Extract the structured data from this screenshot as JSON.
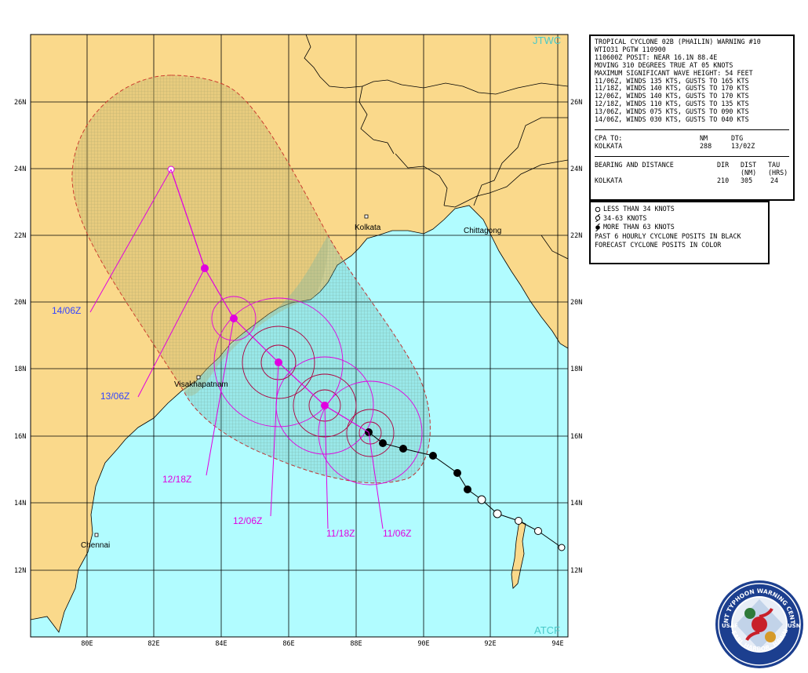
{
  "map": {
    "corner_labels": {
      "top_right": "JTWC",
      "bottom_right": "ATCF"
    },
    "lat_labels": [
      "26N",
      "24N",
      "22N",
      "20N",
      "18N",
      "16N",
      "14N",
      "12N"
    ],
    "lon_labels": [
      "80E",
      "82E",
      "84E",
      "86E",
      "88E",
      "90E",
      "92E",
      "94E"
    ],
    "cities": {
      "kolkata": "Kolkata",
      "chittagong": "Chittagong",
      "visakhapatnam": "Visakhapatnam",
      "chennai": "Chennai"
    },
    "forecast_labels": {
      "t1": "11/06Z",
      "t2": "11/18Z",
      "t3": "12/06Z",
      "t4": "12/18Z",
      "t5": "13/06Z",
      "t6": "14/06Z"
    },
    "colors": {
      "land": "#fad98b",
      "water": "#b1fcff",
      "forecast": "#e000e0",
      "danger_land": "#c8b66a",
      "danger_water": "#8fd2d0",
      "label_land": "#3344ff"
    }
  },
  "info": {
    "title": "TROPICAL CYCLONE 02B (PHAILIN) WARNING #10",
    "line2": "WTIO31 PGTW 110900",
    "line3": "110600Z POSIT: NEAR 16.1N 88.4E",
    "line4": "MOVING 310 DEGREES TRUE AT 05 KNOTS",
    "line5": "MAXIMUM SIGNIFICANT WAVE HEIGHT: 54 FEET",
    "forecasts": [
      "11/06Z, WINDS 135 KTS, GUSTS TO 165 KTS",
      "11/18Z, WINDS 140 KTS, GUSTS TO 170 KTS",
      "12/06Z, WINDS 140 KTS, GUSTS TO 170 KTS",
      "12/18Z, WINDS 110 KTS, GUSTS TO 135 KTS",
      "13/06Z, WINDS 075 KTS, GUSTS TO 090 KTS",
      "14/06Z, WINDS 030 KTS, GUSTS TO 040 KTS"
    ],
    "cpa_label": "CPA TO:",
    "cpa_col_nm": "NM",
    "cpa_col_dtg": "DTG",
    "cpa_place": "KOLKATA",
    "cpa_nm": "288",
    "cpa_dtg": "13/02Z",
    "bd_label": "BEARING AND DISTANCE",
    "bd_dir": "DIR",
    "bd_dist": "DIST",
    "bd_tau": "TAU",
    "bd_nm": "(NM)",
    "bd_hrs": "(HRS)",
    "bd_place": "KOLKATA",
    "bd_dir_val": "210",
    "bd_dist_val": "305",
    "bd_tau_val": "24"
  },
  "legend": {
    "l1": "LESS THAN 34 KNOTS",
    "l2": "34-63 KNOTS",
    "l3": "MORE THAN 63 KNOTS",
    "l4": "PAST 6 HOURLY CYCLONE POSITS IN BLACK",
    "l5": "FORECAST CYCLONE POSITS IN COLOR"
  },
  "seal": {
    "top_text": "JOINT TYPHOON WARNING CENTER",
    "bottom_text": "PEARL HARBOR, HAWAII",
    "left_text": "USAF",
    "right_text": "USN"
  }
}
